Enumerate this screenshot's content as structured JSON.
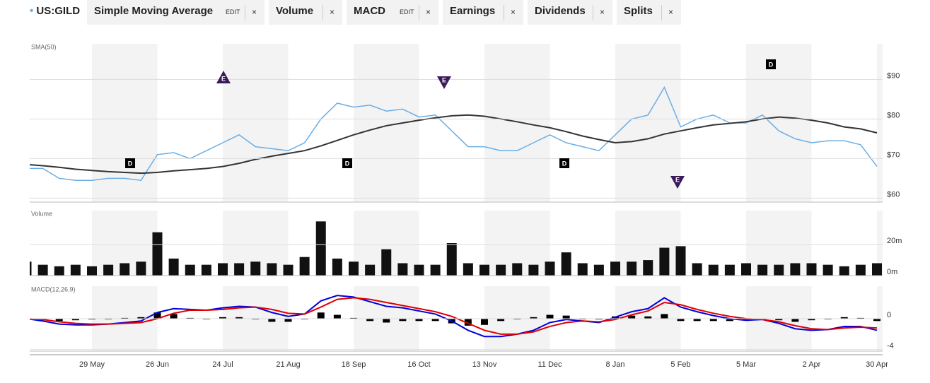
{
  "toolbar": {
    "symbol": "US:GILD",
    "items": [
      {
        "label": "Simple Moving Average",
        "edit": "EDIT",
        "close": "×"
      },
      {
        "label": "Volume",
        "close": "×"
      },
      {
        "label": "MACD",
        "edit": "EDIT",
        "close": "×"
      },
      {
        "label": "Earnings",
        "close": "×"
      },
      {
        "label": "Dividends",
        "close": "×"
      },
      {
        "label": "Splits",
        "close": "×"
      }
    ]
  },
  "chart_data": [
    {
      "type": "line",
      "title": "SMA(50)",
      "ylim": [
        59,
        99
      ],
      "yticks": [
        {
          "value": 60,
          "label": "$60"
        },
        {
          "value": 70,
          "label": "$70"
        },
        {
          "value": 80,
          "label": "$80"
        },
        {
          "value": 90,
          "label": "$90"
        }
      ],
      "grid": true,
      "series": [
        {
          "color": "#6aaee6",
          "values": [
            67.5,
            67.5,
            65,
            64.5,
            64.5,
            65,
            65,
            64.5,
            71,
            71.5,
            70,
            72,
            74,
            76,
            73,
            72.5,
            72,
            74,
            80,
            84,
            83,
            83.5,
            82,
            82.5,
            80.5,
            81,
            77,
            73,
            73,
            72,
            72,
            74,
            76,
            74,
            73,
            72,
            76,
            80,
            81,
            88,
            78,
            80,
            81,
            79,
            79,
            81,
            77,
            75,
            74,
            74.5,
            74.5,
            73.5,
            68
          ]
        },
        {
          "color": "#333333",
          "values": [
            68.5,
            68.2,
            67.8,
            67.3,
            67,
            66.7,
            66.5,
            66.3,
            66.5,
            66.9,
            67.2,
            67.5,
            68,
            68.8,
            69.8,
            70.6,
            71.3,
            72,
            73.2,
            74.6,
            76,
            77.2,
            78.3,
            79,
            79.7,
            80.3,
            80.8,
            81,
            80.7,
            80,
            79.3,
            78.5,
            77.8,
            76.8,
            75.7,
            74.8,
            74,
            74.3,
            75,
            76.2,
            77,
            77.8,
            78.5,
            78.9,
            79.3,
            80,
            80.5,
            80.2,
            79.7,
            79,
            78,
            77.5,
            76.5
          ]
        }
      ],
      "events": [
        "D",
        "E",
        "D",
        "E",
        "D",
        "E",
        "D"
      ]
    },
    {
      "type": "bar",
      "title": "Volume",
      "ylim": [
        0,
        42
      ],
      "color": "#111111",
      "yticks": [
        {
          "value": 0,
          "label": "0m"
        },
        {
          "value": 20,
          "label": "20m"
        }
      ],
      "grid": true,
      "values": [
        9,
        7,
        6,
        7,
        6,
        7,
        8,
        9,
        28,
        11,
        7,
        7,
        8,
        8,
        9,
        8,
        7,
        12,
        35,
        11,
        9,
        7,
        17,
        8,
        7,
        7,
        21,
        8,
        7,
        7,
        8,
        7,
        9,
        15,
        8,
        7,
        9,
        9,
        10,
        18,
        19,
        8,
        7,
        7,
        8,
        7,
        7,
        8,
        8,
        7,
        6,
        7,
        8
      ]
    },
    {
      "type": "line",
      "title": "MACD(12,26,9)",
      "ylim": [
        -4.2,
        4.2
      ],
      "yticks": [
        -4,
        0
      ],
      "grid": true,
      "categories": [
        null,
        null,
        null,
        null,
        "29 May",
        null,
        null,
        null,
        "26 Jun",
        null,
        null,
        null,
        "24 Jul",
        null,
        null,
        null,
        "21 Aug",
        null,
        null,
        null,
        "18 Sep",
        null,
        null,
        null,
        "16 Oct",
        null,
        null,
        null,
        "13 Nov",
        null,
        null,
        null,
        "11 Dec",
        null,
        null,
        null,
        "8 Jan",
        null,
        null,
        null,
        "5 Feb",
        null,
        null,
        null,
        "5 Mar",
        null,
        null,
        null,
        "2 Apr",
        null,
        null,
        null,
        "30 Apr"
      ],
      "series": [
        {
          "color": "#0000dd",
          "values": [
            0,
            -0.3,
            -0.7,
            -0.8,
            -0.8,
            -0.7,
            -0.5,
            -0.3,
            0.8,
            1.3,
            1.2,
            1.1,
            1.4,
            1.6,
            1.5,
            0.8,
            0.3,
            0.6,
            2.3,
            3.0,
            2.8,
            2.2,
            1.6,
            1.4,
            1.0,
            0.6,
            -0.3,
            -1.5,
            -2.3,
            -2.3,
            -2.0,
            -1.5,
            -0.5,
            -0.1,
            -0.3,
            -0.5,
            0.2,
            0.9,
            1.3,
            2.7,
            1.5,
            0.9,
            0.4,
            0,
            -0.2,
            -0.1,
            -0.6,
            -1.3,
            -1.5,
            -1.4,
            -1.0,
            -1.0,
            -1.5
          ]
        },
        {
          "color": "#e00000",
          "values": [
            0,
            -0.1,
            -0.4,
            -0.6,
            -0.7,
            -0.7,
            -0.6,
            -0.5,
            0,
            0.7,
            1.1,
            1.1,
            1.2,
            1.4,
            1.5,
            1.2,
            0.7,
            0.6,
            1.5,
            2.5,
            2.7,
            2.5,
            2.1,
            1.7,
            1.3,
            0.9,
            0.3,
            -0.6,
            -1.5,
            -2.0,
            -2.0,
            -1.7,
            -1.0,
            -0.5,
            -0.3,
            -0.4,
            -0.1,
            0.5,
            1.0,
            2.1,
            1.8,
            1.2,
            0.7,
            0.3,
            0,
            -0.1,
            -0.4,
            -0.9,
            -1.3,
            -1.4,
            -1.2,
            -1.1,
            -1.2
          ]
        }
      ],
      "histogram": {
        "color": "#000000",
        "values": [
          0,
          -0.2,
          -0.3,
          -0.2,
          -0.1,
          0,
          0.1,
          0.2,
          0.8,
          0.6,
          0.1,
          0,
          0.2,
          0.2,
          0,
          -0.4,
          -0.4,
          0,
          0.8,
          0.5,
          0.1,
          -0.3,
          -0.5,
          -0.3,
          -0.3,
          -0.3,
          -0.6,
          -0.9,
          -0.8,
          -0.3,
          0,
          0.2,
          0.5,
          0.4,
          0,
          -0.1,
          0.3,
          0.4,
          0.3,
          0.6,
          -0.3,
          -0.3,
          -0.3,
          -0.3,
          -0.2,
          0,
          -0.2,
          -0.4,
          -0.2,
          0,
          0.2,
          0.1,
          -0.3
        ]
      }
    }
  ]
}
